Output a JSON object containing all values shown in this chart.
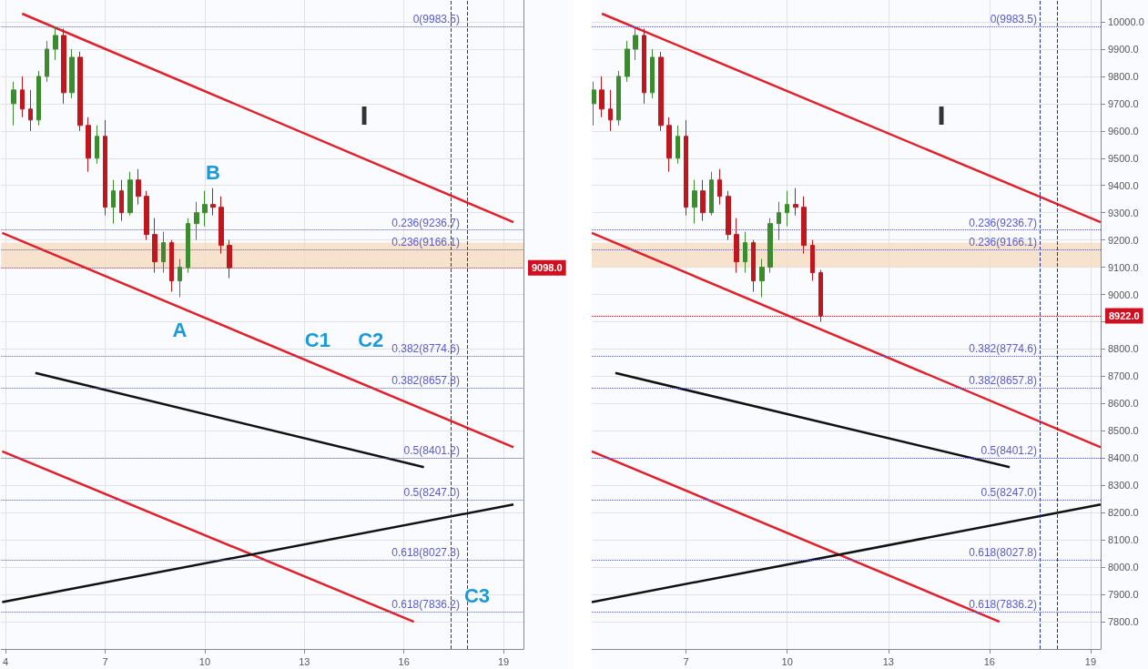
{
  "chart_data": [
    {
      "type": "candlestick",
      "x": [
        4.25,
        4.5,
        4.75,
        5.0,
        5.25,
        5.5,
        5.75,
        6.0,
        6.25,
        6.5,
        6.75,
        7.0,
        7.25,
        7.5,
        7.75,
        8.0,
        8.25,
        8.5,
        8.75,
        9.0,
        9.25,
        9.5,
        9.75,
        10.0,
        10.25,
        10.5,
        10.75
      ],
      "ohlc": [
        [
          9700,
          9780,
          9620,
          9750
        ],
        [
          9750,
          9800,
          9650,
          9680
        ],
        [
          9680,
          9750,
          9600,
          9640
        ],
        [
          9640,
          9820,
          9620,
          9800
        ],
        [
          9800,
          9930,
          9780,
          9900
        ],
        [
          9900,
          9983,
          9860,
          9950
        ],
        [
          9950,
          9975,
          9700,
          9740
        ],
        [
          9740,
          9900,
          9720,
          9870
        ],
        [
          9870,
          9890,
          9600,
          9620
        ],
        [
          9620,
          9650,
          9450,
          9500
        ],
        [
          9500,
          9620,
          9480,
          9580
        ],
        [
          9580,
          9640,
          9290,
          9320
        ],
        [
          9320,
          9420,
          9260,
          9380
        ],
        [
          9380,
          9420,
          9270,
          9300
        ],
        [
          9300,
          9450,
          9290,
          9420
        ],
        [
          9420,
          9460,
          9330,
          9360
        ],
        [
          9360,
          9380,
          9200,
          9220
        ],
        [
          9220,
          9280,
          9080,
          9120
        ],
        [
          9120,
          9230,
          9080,
          9190
        ],
        [
          9190,
          9200,
          9010,
          9050
        ],
        [
          9050,
          9130,
          8990,
          9100
        ],
        [
          9100,
          9280,
          9080,
          9260
        ],
        [
          9260,
          9340,
          9200,
          9300
        ],
        [
          9300,
          9380,
          9250,
          9330
        ],
        [
          9330,
          9390,
          9290,
          9320
        ],
        [
          9320,
          9360,
          9150,
          9180
        ],
        [
          9180,
          9200,
          9060,
          9098
        ]
      ],
      "colors": [
        "#3d8b2f",
        "#c0161e",
        "#c0161e",
        "#3d8b2f",
        "#3d8b2f",
        "#3d8b2f",
        "#c0161e",
        "#3d8b2f",
        "#c0161e",
        "#c0161e",
        "#3d8b2f",
        "#c0161e",
        "#3d8b2f",
        "#c0161e",
        "#3d8b2f",
        "#c0161e",
        "#c0161e",
        "#c0161e",
        "#3d8b2f",
        "#c0161e",
        "#3d8b2f",
        "#3d8b2f",
        "#3d8b2f",
        "#3d8b2f",
        "#c0161e",
        "#c0161e",
        "#c0161e"
      ],
      "series": [
        {
          "type": "line",
          "color": "#e0202a",
          "x": [
            4.5,
            19.3
          ],
          "values": [
            10030,
            9265
          ]
        },
        {
          "type": "line",
          "color": "#e0202a",
          "x": [
            3.9,
            19.3
          ],
          "values": [
            9226,
            8440
          ]
        },
        {
          "type": "line",
          "color": "#e0202a",
          "x": [
            3.9,
            16.3
          ],
          "values": [
            8425,
            7800
          ]
        },
        {
          "type": "line",
          "color": "#111111",
          "x": [
            3.9,
            19.3
          ],
          "values": [
            7872,
            8230
          ]
        },
        {
          "type": "line",
          "color": "#111111",
          "x": [
            4.9,
            16.6
          ],
          "values": [
            8712,
            8367
          ]
        }
      ],
      "xlim": [
        3.87,
        19.6
      ],
      "xticks": [
        4,
        7,
        10,
        13,
        16,
        19
      ],
      "ylim": [
        7700,
        10080
      ],
      "yticks": [
        7800,
        7900,
        8000,
        8100,
        8200,
        8300,
        8400,
        8500,
        8600,
        8700,
        8800,
        8900,
        9000,
        9100,
        9200,
        9300,
        9400,
        9500,
        9600,
        9700,
        9800,
        9900,
        10000
      ],
      "tick_labels": "x",
      "grid": true,
      "ref_lines": [
        {
          "axis": "y",
          "value": 9098,
          "label": "9098.0",
          "color": "#d01020",
          "line_style": "dotted"
        },
        {
          "axis": "y",
          "value": 9983.5,
          "label": "0(9983.5)",
          "color": "#5a5ad0",
          "line_style": "dotted"
        },
        {
          "axis": "y",
          "value": 9236.7,
          "label": "0.236(9236.7)",
          "color": "#5a5ad0",
          "line_style": "dotted"
        },
        {
          "axis": "y",
          "value": 9166.1,
          "label": "0.236(9166.1)",
          "color": "#5a5ad0",
          "line_style": "dotted"
        },
        {
          "axis": "y",
          "value": 8774.6,
          "label": "0.382(8774.6)",
          "color": "#5a5ad0",
          "line_style": "dotted"
        },
        {
          "axis": "y",
          "value": 8657.8,
          "label": "0.382(8657.8)",
          "color": "#5a5ad0",
          "line_style": "dotted"
        },
        {
          "axis": "y",
          "value": 8401.2,
          "label": "0.5(8401.2)",
          "color": "#5a5ad0",
          "line_style": "dotted"
        },
        {
          "axis": "y",
          "value": 8247.0,
          "label": "0.5(8247.0)",
          "color": "#5a5ad0",
          "line_style": "dotted"
        },
        {
          "axis": "y",
          "value": 8027.8,
          "label": "0.618(8027.8)",
          "color": "#5a5ad0",
          "line_style": "dotted"
        },
        {
          "axis": "y",
          "value": 7836.2,
          "label": "0.618(7836.2)",
          "color": "#5a5ad0",
          "line_style": "dotted"
        },
        {
          "axis": "x",
          "value": 17.4,
          "color": "#2233aa",
          "line_style": "dashed"
        },
        {
          "axis": "x",
          "value": 17.9,
          "color": "#2233aa",
          "line_style": "dashed"
        }
      ],
      "bands": [
        {
          "axis": "y",
          "from": 9100,
          "to": 9190,
          "color": "#f5dcc0"
        }
      ],
      "annotations": [
        {
          "text": "A",
          "x": 9.25,
          "y": 8990
        },
        {
          "text": "B",
          "x": 10.25,
          "y": 9390
        },
        {
          "text": "C1",
          "x": 13.4,
          "y": 8774.6
        },
        {
          "text": "C2",
          "x": 15.0,
          "y": 8774.6
        },
        {
          "text": "C3",
          "x": 18.2,
          "y": 7836.2
        },
        "I"
      ]
    },
    {
      "type": "candlestick",
      "x": [
        4.25,
        4.5,
        4.75,
        5.0,
        5.25,
        5.5,
        5.75,
        6.0,
        6.25,
        6.5,
        6.75,
        7.0,
        7.25,
        7.5,
        7.75,
        8.0,
        8.25,
        8.5,
        8.75,
        9.0,
        9.25,
        9.5,
        9.75,
        10.0,
        10.25,
        10.5,
        10.75,
        11.0
      ],
      "ohlc": [
        [
          9700,
          9780,
          9620,
          9750
        ],
        [
          9750,
          9800,
          9650,
          9680
        ],
        [
          9680,
          9750,
          9600,
          9640
        ],
        [
          9640,
          9820,
          9620,
          9800
        ],
        [
          9800,
          9930,
          9780,
          9900
        ],
        [
          9900,
          9983,
          9860,
          9950
        ],
        [
          9950,
          9975,
          9700,
          9740
        ],
        [
          9740,
          9900,
          9720,
          9870
        ],
        [
          9870,
          9890,
          9600,
          9620
        ],
        [
          9620,
          9650,
          9450,
          9500
        ],
        [
          9500,
          9620,
          9480,
          9580
        ],
        [
          9580,
          9640,
          9290,
          9320
        ],
        [
          9320,
          9420,
          9260,
          9380
        ],
        [
          9380,
          9420,
          9270,
          9300
        ],
        [
          9300,
          9450,
          9290,
          9420
        ],
        [
          9420,
          9460,
          9330,
          9360
        ],
        [
          9360,
          9380,
          9200,
          9220
        ],
        [
          9220,
          9280,
          9080,
          9120
        ],
        [
          9120,
          9230,
          9080,
          9190
        ],
        [
          9190,
          9200,
          9010,
          9050
        ],
        [
          9050,
          9130,
          8990,
          9100
        ],
        [
          9100,
          9280,
          9080,
          9260
        ],
        [
          9260,
          9340,
          9200,
          9300
        ],
        [
          9300,
          9380,
          9250,
          9330
        ],
        [
          9330,
          9390,
          9290,
          9320
        ],
        [
          9320,
          9360,
          9150,
          9180
        ],
        [
          9180,
          9200,
          9050,
          9080
        ],
        [
          9080,
          9090,
          8900,
          8922
        ]
      ],
      "colors": [
        "#3d8b2f",
        "#c0161e",
        "#c0161e",
        "#3d8b2f",
        "#3d8b2f",
        "#3d8b2f",
        "#c0161e",
        "#3d8b2f",
        "#c0161e",
        "#c0161e",
        "#3d8b2f",
        "#c0161e",
        "#3d8b2f",
        "#c0161e",
        "#3d8b2f",
        "#c0161e",
        "#c0161e",
        "#c0161e",
        "#3d8b2f",
        "#c0161e",
        "#3d8b2f",
        "#3d8b2f",
        "#3d8b2f",
        "#3d8b2f",
        "#c0161e",
        "#c0161e",
        "#c0161e",
        "#c0161e"
      ],
      "series": [
        {
          "type": "line",
          "color": "#e0202a",
          "x": [
            4.5,
            19.3
          ],
          "values": [
            10030,
            9265
          ]
        },
        {
          "type": "line",
          "color": "#e0202a",
          "x": [
            4.2,
            19.3
          ],
          "values": [
            9226,
            8440
          ]
        },
        {
          "type": "line",
          "color": "#e0202a",
          "x": [
            4.2,
            16.3
          ],
          "values": [
            8425,
            7800
          ]
        },
        {
          "type": "line",
          "color": "#111111",
          "x": [
            4.2,
            19.3
          ],
          "values": [
            7872,
            8230
          ]
        },
        {
          "type": "line",
          "color": "#111111",
          "x": [
            4.9,
            16.6
          ],
          "values": [
            8712,
            8367
          ]
        }
      ],
      "xlim": [
        4.2,
        19.3
      ],
      "xticks": [
        7,
        10,
        13,
        16,
        19
      ],
      "ylim": [
        7700,
        10080
      ],
      "yticks": [
        {
          "value": 7800,
          "label": "7800.0"
        },
        {
          "value": 7900,
          "label": "7900.0"
        },
        {
          "value": 8000,
          "label": "8000.0"
        },
        {
          "value": 8100,
          "label": "8100.0"
        },
        {
          "value": 8200,
          "label": "8200.0"
        },
        {
          "value": 8300,
          "label": "8300.0"
        },
        {
          "value": 8400,
          "label": "8400.0"
        },
        {
          "value": 8500,
          "label": "8500.0"
        },
        {
          "value": 8600,
          "label": "8600.0"
        },
        {
          "value": 8700,
          "label": "8700.0"
        },
        {
          "value": 8800,
          "label": "8800.0"
        },
        {
          "value": 8900,
          "label": null
        },
        {
          "value": 9000,
          "label": "9000.0"
        },
        {
          "value": 9100,
          "label": "9100.0"
        },
        {
          "value": 9200,
          "label": "9200.0"
        },
        {
          "value": 9300,
          "label": "9300.0"
        },
        {
          "value": 9400,
          "label": "9400.0"
        },
        {
          "value": 9500,
          "label": "9500.0"
        },
        {
          "value": 9600,
          "label": "9600.0"
        },
        {
          "value": 9700,
          "label": "9700.0"
        },
        {
          "value": 9800,
          "label": "9800.0"
        },
        {
          "value": 9900,
          "label": "9900.0"
        },
        {
          "value": 10000,
          "label": "10000.0"
        }
      ],
      "grid": true,
      "ref_lines": [
        {
          "axis": "y",
          "value": 8922,
          "label": "8922.0",
          "color": "#d01020",
          "line_style": "dotted"
        },
        {
          "axis": "y",
          "value": 9983.5,
          "label": "0(9983.5)",
          "color": "#5a5ad0",
          "line_style": "dotted"
        },
        {
          "axis": "y",
          "value": 9236.7,
          "label": "0.236(9236.7)",
          "color": "#5a5ad0",
          "line_style": "dotted"
        },
        {
          "axis": "y",
          "value": 9166.1,
          "label": "0.236(9166.1)",
          "color": "#5a5ad0",
          "line_style": "dotted"
        },
        {
          "axis": "y",
          "value": 8774.6,
          "label": "0.382(8774.6)",
          "color": "#5a5ad0",
          "line_style": "dotted"
        },
        {
          "axis": "y",
          "value": 8657.8,
          "label": "0.382(8657.8)",
          "color": "#5a5ad0",
          "line_style": "dotted"
        },
        {
          "axis": "y",
          "value": 8401.2,
          "label": "0.5(8401.2)",
          "color": "#5a5ad0",
          "line_style": "dotted"
        },
        {
          "axis": "y",
          "value": 8247.0,
          "label": "0.5(8247.0)",
          "color": "#5a5ad0",
          "line_style": "dotted"
        },
        {
          "axis": "y",
          "value": 8027.8,
          "label": "0.618(8027.8)",
          "color": "#5a5ad0",
          "line_style": "dotted"
        },
        {
          "axis": "y",
          "value": 7836.2,
          "label": "0.618(7836.2)",
          "color": "#5a5ad0",
          "line_style": "dotted"
        },
        {
          "axis": "x",
          "value": 17.5,
          "color": "#2233aa",
          "line_style": "dashed"
        },
        {
          "axis": "x",
          "value": 18.0,
          "color": "#2233aa",
          "line_style": "dashed"
        }
      ],
      "bands": [
        {
          "axis": "y",
          "from": 9100,
          "to": 9190,
          "color": "#f5dcc0"
        }
      ],
      "annotations": [
        "I"
      ]
    }
  ]
}
